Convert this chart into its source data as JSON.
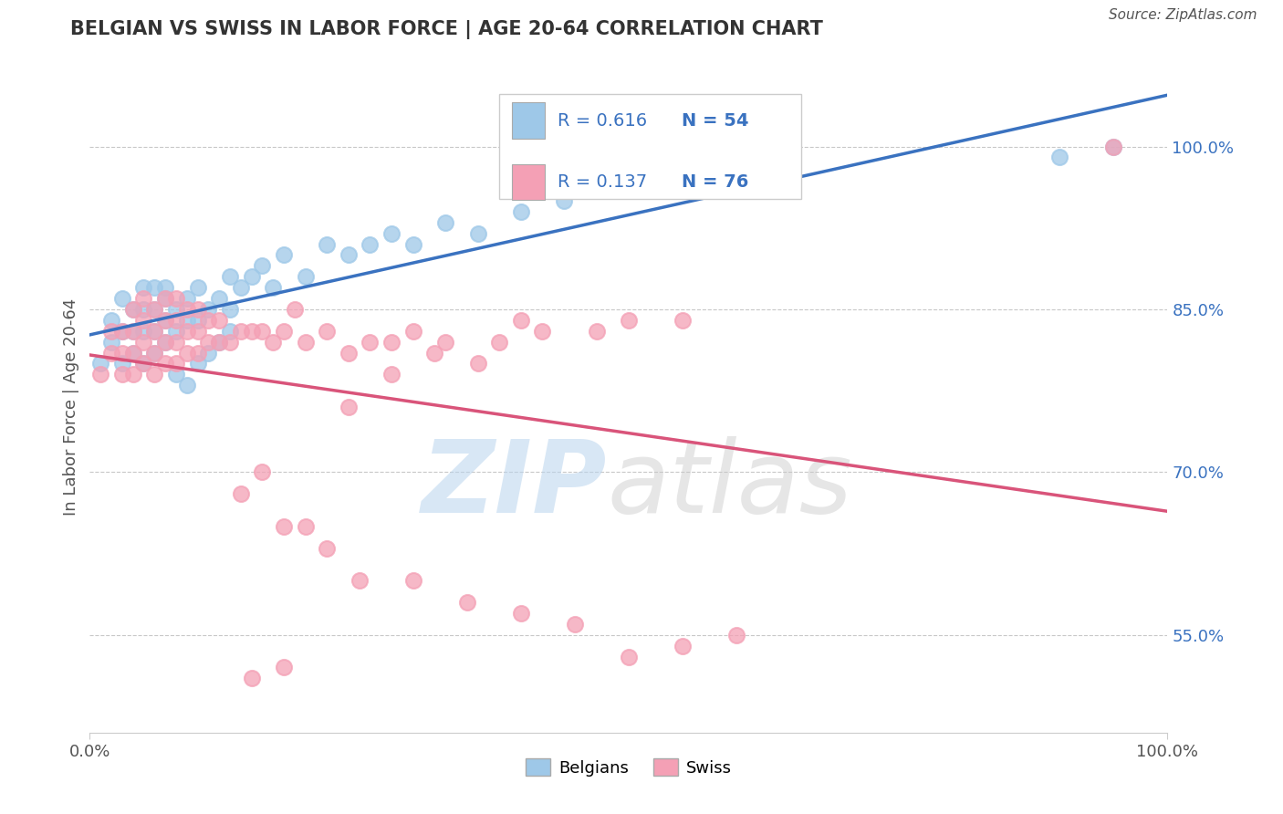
{
  "title": "BELGIAN VS SWISS IN LABOR FORCE | AGE 20-64 CORRELATION CHART",
  "source": "Source: ZipAtlas.com",
  "ylabel": "In Labor Force | Age 20-64",
  "ytick_labels": [
    "55.0%",
    "70.0%",
    "85.0%",
    "100.0%"
  ],
  "ytick_values": [
    0.55,
    0.7,
    0.85,
    1.0
  ],
  "xlim": [
    0.0,
    1.0
  ],
  "ylim": [
    0.46,
    1.06
  ],
  "belgian_color": "#9EC8E8",
  "swiss_color": "#F4A0B5",
  "belgian_line_color": "#3A72C0",
  "swiss_line_color": "#D9547A",
  "legend_r_belgian": "R = 0.616",
  "legend_n_belgian": "N = 54",
  "legend_r_swiss": "R = 0.137",
  "legend_n_swiss": "N = 76",
  "legend_label_belgian": "Belgians",
  "legend_label_swiss": "Swiss",
  "belgian_x": [
    0.01,
    0.02,
    0.02,
    0.03,
    0.03,
    0.03,
    0.04,
    0.04,
    0.04,
    0.05,
    0.05,
    0.05,
    0.05,
    0.06,
    0.06,
    0.06,
    0.06,
    0.07,
    0.07,
    0.07,
    0.07,
    0.08,
    0.08,
    0.09,
    0.09,
    0.1,
    0.1,
    0.11,
    0.12,
    0.13,
    0.13,
    0.14,
    0.15,
    0.16,
    0.17,
    0.18,
    0.2,
    0.22,
    0.24,
    0.26,
    0.28,
    0.3,
    0.33,
    0.36,
    0.4,
    0.44,
    0.9,
    0.95,
    0.08,
    0.09,
    0.1,
    0.11,
    0.12,
    0.13
  ],
  "belgian_y": [
    0.8,
    0.82,
    0.84,
    0.8,
    0.83,
    0.86,
    0.81,
    0.83,
    0.85,
    0.8,
    0.83,
    0.85,
    0.87,
    0.81,
    0.83,
    0.85,
    0.87,
    0.82,
    0.84,
    0.86,
    0.87,
    0.83,
    0.85,
    0.84,
    0.86,
    0.84,
    0.87,
    0.85,
    0.86,
    0.85,
    0.88,
    0.87,
    0.88,
    0.89,
    0.87,
    0.9,
    0.88,
    0.91,
    0.9,
    0.91,
    0.92,
    0.91,
    0.93,
    0.92,
    0.94,
    0.95,
    0.99,
    1.0,
    0.79,
    0.78,
    0.8,
    0.81,
    0.82,
    0.83
  ],
  "swiss_x": [
    0.01,
    0.02,
    0.02,
    0.03,
    0.03,
    0.03,
    0.04,
    0.04,
    0.04,
    0.04,
    0.05,
    0.05,
    0.05,
    0.05,
    0.06,
    0.06,
    0.06,
    0.06,
    0.07,
    0.07,
    0.07,
    0.07,
    0.08,
    0.08,
    0.08,
    0.08,
    0.09,
    0.09,
    0.09,
    0.1,
    0.1,
    0.1,
    0.11,
    0.11,
    0.12,
    0.12,
    0.13,
    0.14,
    0.15,
    0.16,
    0.17,
    0.18,
    0.19,
    0.2,
    0.22,
    0.24,
    0.26,
    0.28,
    0.3,
    0.33,
    0.36,
    0.4,
    0.28,
    0.32,
    0.24,
    0.38,
    0.42,
    0.47,
    0.5,
    0.55,
    0.14,
    0.16,
    0.18,
    0.2,
    0.22,
    0.25,
    0.3,
    0.35,
    0.4,
    0.45,
    0.95,
    0.5,
    0.55,
    0.6,
    0.15,
    0.18
  ],
  "swiss_y": [
    0.79,
    0.81,
    0.83,
    0.79,
    0.81,
    0.83,
    0.79,
    0.81,
    0.83,
    0.85,
    0.8,
    0.82,
    0.84,
    0.86,
    0.79,
    0.81,
    0.83,
    0.85,
    0.8,
    0.82,
    0.84,
    0.86,
    0.8,
    0.82,
    0.84,
    0.86,
    0.81,
    0.83,
    0.85,
    0.81,
    0.83,
    0.85,
    0.82,
    0.84,
    0.82,
    0.84,
    0.82,
    0.83,
    0.83,
    0.83,
    0.82,
    0.83,
    0.85,
    0.82,
    0.83,
    0.81,
    0.82,
    0.82,
    0.83,
    0.82,
    0.8,
    0.84,
    0.79,
    0.81,
    0.76,
    0.82,
    0.83,
    0.83,
    0.84,
    0.84,
    0.68,
    0.7,
    0.65,
    0.65,
    0.63,
    0.6,
    0.6,
    0.58,
    0.57,
    0.56,
    1.0,
    0.53,
    0.54,
    0.55,
    0.51,
    0.52
  ]
}
